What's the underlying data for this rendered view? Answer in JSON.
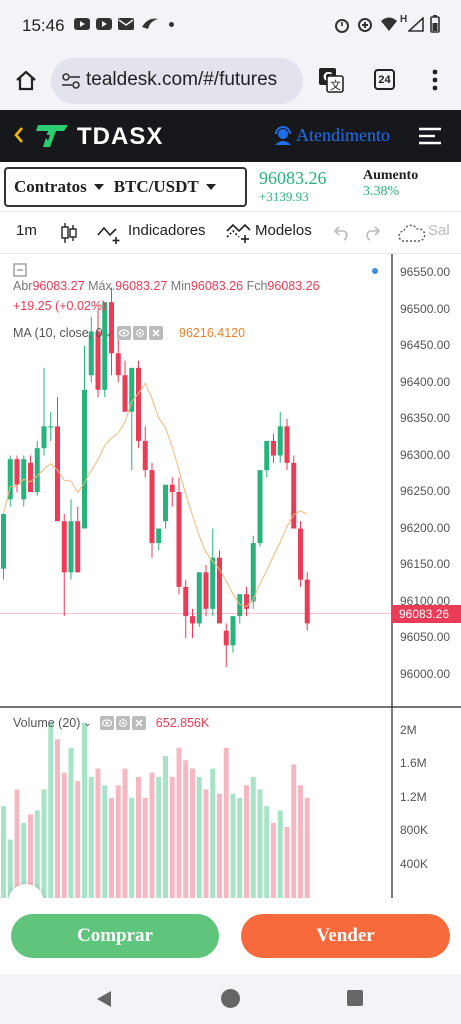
{
  "status_bar": {
    "time": "15:46",
    "network_label": "H"
  },
  "browser": {
    "url": "tealdesk.com/#/futures",
    "tab_count": "24"
  },
  "app_header": {
    "brand": "TDASX",
    "support_label": "Atendimento"
  },
  "pair_bar": {
    "contracts_label": "Contratos",
    "pair_label": "BTC/USDT",
    "last_price": "96083.26",
    "change_abs": "+3139.93",
    "change_title": "Aumento",
    "change_pct": "3.38%"
  },
  "toolbar": {
    "interval": "1m",
    "indicators_label": "Indicadores",
    "models_label": "Modelos",
    "save_label": "Sal"
  },
  "ohlc": {
    "open_label": "Abr",
    "open": "96083.27",
    "high_label": "Máx.",
    "high": "96083.27",
    "low_label": "Min",
    "low": "96083.26",
    "close_label": "Fch",
    "close": "96083.26",
    "change": "+19.25 (+0.02%)"
  },
  "ma": {
    "label": "MA (10, close, 0",
    "value": "96216.4120"
  },
  "volume": {
    "label": "Volume (20)",
    "value": "652.856K"
  },
  "price_axis": [
    "96550.00",
    "96500.00",
    "96450.00",
    "96400.00",
    "96350.00",
    "96300.00",
    "96250.00",
    "96200.00",
    "96150.00",
    "96100.00",
    "96050.00",
    "96000.00"
  ],
  "volume_axis": [
    "2M",
    "1.6M",
    "1.2M",
    "800K",
    "400K"
  ],
  "current_price_tag": "96083.26",
  "actions": {
    "buy_label": "Comprar",
    "sell_label": "Vender"
  },
  "colors": {
    "up": "#26b47c",
    "down": "#ea3c57",
    "up_volume": "#a6e3c7",
    "down_volume": "#f5b8c3",
    "ma_line": "#f0b97a",
    "accent_blue": "#1f6feb",
    "buy": "#5fc47c",
    "sell": "#f86a3b"
  },
  "chart_data": {
    "type": "candlestick",
    "candles": [
      {
        "o": 96145,
        "h": 96220,
        "l": 96130,
        "c": 96220
      },
      {
        "o": 96240,
        "h": 96300,
        "l": 96230,
        "c": 96295
      },
      {
        "o": 96295,
        "h": 96300,
        "l": 96250,
        "c": 96260
      },
      {
        "o": 96240,
        "h": 96300,
        "l": 96230,
        "c": 96295
      },
      {
        "o": 96290,
        "h": 96300,
        "l": 96250,
        "c": 96250
      },
      {
        "o": 96250,
        "h": 96320,
        "l": 96245,
        "c": 96310
      },
      {
        "o": 96310,
        "h": 96420,
        "l": 96300,
        "c": 96340
      },
      {
        "o": 96340,
        "h": 96360,
        "l": 96320,
        "c": 96340
      },
      {
        "o": 96340,
        "h": 96380,
        "l": 96210,
        "c": 96210
      },
      {
        "o": 96210,
        "h": 96220,
        "l": 96080,
        "c": 96140
      },
      {
        "o": 96140,
        "h": 96240,
        "l": 96130,
        "c": 96210
      },
      {
        "o": 96210,
        "h": 96230,
        "l": 96140,
        "c": 96140
      },
      {
        "o": 96200,
        "h": 96450,
        "l": 96200,
        "c": 96390
      },
      {
        "o": 96410,
        "h": 96490,
        "l": 96400,
        "c": 96470
      },
      {
        "o": 96470,
        "h": 96500,
        "l": 96380,
        "c": 96390
      },
      {
        "o": 96390,
        "h": 96510,
        "l": 96380,
        "c": 96510
      },
      {
        "o": 96510,
        "h": 96530,
        "l": 96410,
        "c": 96440
      },
      {
        "o": 96440,
        "h": 96470,
        "l": 96400,
        "c": 96410
      },
      {
        "o": 96410,
        "h": 96430,
        "l": 96360,
        "c": 96360
      },
      {
        "o": 96360,
        "h": 96420,
        "l": 96280,
        "c": 96420
      },
      {
        "o": 96420,
        "h": 96430,
        "l": 96310,
        "c": 96320
      },
      {
        "o": 96320,
        "h": 96340,
        "l": 96270,
        "c": 96280
      },
      {
        "o": 96280,
        "h": 96290,
        "l": 96160,
        "c": 96180
      },
      {
        "o": 96180,
        "h": 96200,
        "l": 96170,
        "c": 96200
      },
      {
        "o": 96210,
        "h": 96260,
        "l": 96200,
        "c": 96260
      },
      {
        "o": 96260,
        "h": 96270,
        "l": 96230,
        "c": 96250
      },
      {
        "o": 96250,
        "h": 96270,
        "l": 96110,
        "c": 96120
      },
      {
        "o": 96120,
        "h": 96130,
        "l": 96050,
        "c": 96080
      },
      {
        "o": 96080,
        "h": 96090,
        "l": 96050,
        "c": 96070
      },
      {
        "o": 96070,
        "h": 96140,
        "l": 96065,
        "c": 96140
      },
      {
        "o": 96140,
        "h": 96150,
        "l": 96080,
        "c": 96090
      },
      {
        "o": 96090,
        "h": 96200,
        "l": 96080,
        "c": 96160
      },
      {
        "o": 96160,
        "h": 96170,
        "l": 96070,
        "c": 96070
      },
      {
        "o": 96060,
        "h": 96070,
        "l": 96010,
        "c": 96040
      },
      {
        "o": 96040,
        "h": 96080,
        "l": 96030,
        "c": 96080
      },
      {
        "o": 96080,
        "h": 96110,
        "l": 96070,
        "c": 96110
      },
      {
        "o": 96110,
        "h": 96120,
        "l": 96080,
        "c": 96090
      },
      {
        "o": 96100,
        "h": 96190,
        "l": 96090,
        "c": 96180
      },
      {
        "o": 96180,
        "h": 96280,
        "l": 96175,
        "c": 96280
      },
      {
        "o": 96280,
        "h": 96320,
        "l": 96270,
        "c": 96320
      },
      {
        "o": 96320,
        "h": 96330,
        "l": 96290,
        "c": 96300
      },
      {
        "o": 96300,
        "h": 96360,
        "l": 96290,
        "c": 96340
      },
      {
        "o": 96340,
        "h": 96350,
        "l": 96280,
        "c": 96290
      },
      {
        "o": 96290,
        "h": 96300,
        "l": 96200,
        "c": 96200
      },
      {
        "o": 96200,
        "h": 96210,
        "l": 96120,
        "c": 96130
      },
      {
        "o": 96130,
        "h": 96140,
        "l": 96060,
        "c": 96070
      }
    ],
    "volumes": [
      1100,
      700,
      1300,
      900,
      1000,
      1050,
      1300,
      2100,
      1900,
      1500,
      1800,
      1400,
      2100,
      1450,
      1550,
      1350,
      1200,
      1350,
      1550,
      1200,
      1450,
      1200,
      1500,
      1450,
      1700,
      1450,
      1800,
      1650,
      1550,
      1450,
      1300,
      1550,
      1250,
      1800,
      1250,
      1200,
      1350,
      1450,
      1300,
      1100,
      900,
      1050,
      850,
      1600,
      1350,
      1200
    ]
  }
}
